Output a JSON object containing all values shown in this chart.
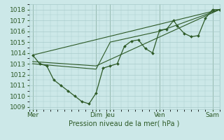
{
  "background_color": "#cce8e8",
  "grid_color": "#aacccc",
  "line_color": "#2d5a27",
  "xlabel": "Pression niveau de la mer( hPa )",
  "ylim": [
    1008.8,
    1018.5
  ],
  "xlim": [
    0,
    27
  ],
  "yticks": [
    1009,
    1010,
    1011,
    1012,
    1013,
    1014,
    1015,
    1016,
    1017,
    1018
  ],
  "xtick_labels": [
    "Mer",
    "Dim",
    "Jeu",
    "Ven",
    "Sam"
  ],
  "xtick_positions": [
    0.5,
    9.5,
    11.5,
    18.5,
    26.0
  ],
  "vline_positions": [
    0.5,
    9.5,
    11.5,
    18.5,
    26.0
  ],
  "series_main": {
    "x": [
      0.5,
      1.5,
      2.5,
      3.5,
      4.5,
      5.5,
      6.5,
      7.5,
      8.5,
      9.5,
      10.5,
      11.5,
      12.5,
      13.5,
      14.5,
      15.5,
      16.5,
      17.5,
      18.5,
      19.5,
      20.5,
      21.0,
      22.0,
      23.0,
      24.0,
      25.0,
      26.0,
      27.0
    ],
    "y": [
      1013.8,
      1013.0,
      1012.8,
      1011.5,
      1011.0,
      1010.5,
      1010.0,
      1009.5,
      1009.3,
      1010.3,
      1012.6,
      1012.8,
      1013.0,
      1014.6,
      1015.1,
      1015.2,
      1014.4,
      1014.0,
      1016.1,
      1016.2,
      1017.0,
      1016.5,
      1015.8,
      1015.5,
      1015.6,
      1017.2,
      1018.0,
      1018.0
    ]
  },
  "trend_line1": {
    "x": [
      0.5,
      27.0
    ],
    "y": [
      1013.8,
      1018.0
    ]
  },
  "trend_line2": {
    "x": [
      0.5,
      9.5,
      27.0
    ],
    "y": [
      1013.2,
      1012.8,
      1018.0
    ]
  },
  "trend_line3": {
    "x": [
      0.5,
      9.5,
      11.5,
      18.5,
      27.0
    ],
    "y": [
      1013.0,
      1012.5,
      1015.0,
      1016.0,
      1018.0
    ]
  }
}
